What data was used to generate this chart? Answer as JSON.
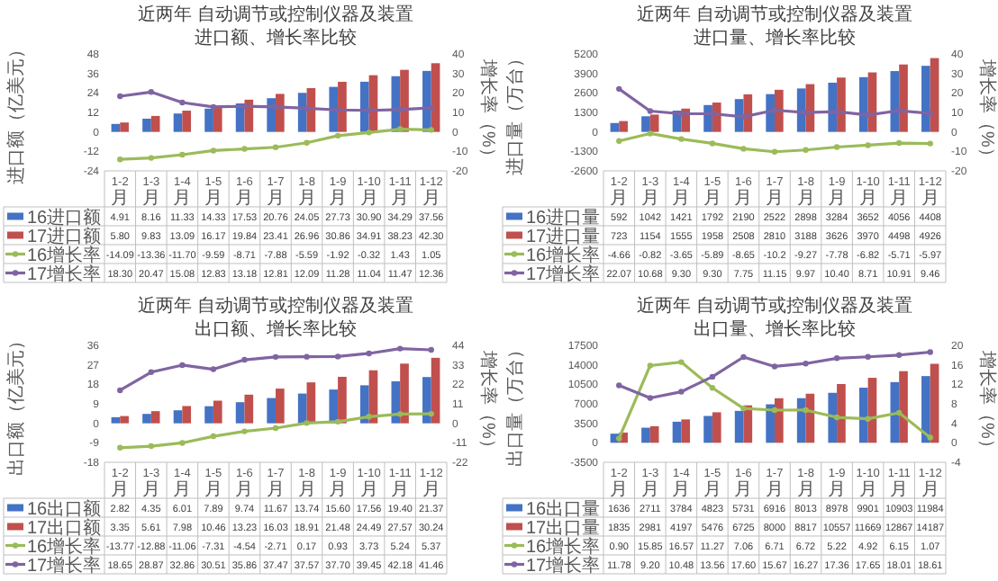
{
  "chart_data": [
    {
      "type": "bar",
      "title": "近两年 自动调节或控制仪器及装置",
      "subtitle": "进口额、增长率比较",
      "ylabel": "进口额（亿美元）",
      "y2label": "增长率（%）",
      "legend": "bottom",
      "marker": "circle",
      "categories": [
        "1-2月",
        "1-3月",
        "1-4月",
        "1-5月",
        "1-6月",
        "1-7月",
        "1-8月",
        "1-9月",
        "1-10月",
        "1-11月",
        "1-12月"
      ],
      "ylim": [
        -24,
        48
      ],
      "yticks": [
        -24,
        -12,
        0,
        12,
        24,
        36,
        48
      ],
      "y2lim": [
        -20,
        40
      ],
      "y2ticks": [
        -20,
        -10,
        0,
        10,
        20,
        30,
        40
      ],
      "series": [
        {
          "name": "16进口额",
          "type": "bar",
          "color": "#4472c4",
          "values": [
            4.91,
            8.16,
            11.33,
            14.33,
            17.53,
            20.76,
            24.05,
            27.73,
            30.9,
            34.29,
            37.56
          ],
          "value_labels": [
            "4.91",
            "8.16",
            "11.33",
            "14.33",
            "17.53",
            "20.76",
            "24.05",
            "27.73",
            "30.90",
            "34.29",
            "37.56"
          ]
        },
        {
          "name": "17进口额",
          "type": "bar",
          "color": "#c0504d",
          "values": [
            5.8,
            9.83,
            13.09,
            16.17,
            19.84,
            23.41,
            26.96,
            30.86,
            34.91,
            38.23,
            42.3
          ],
          "value_labels": [
            "5.80",
            "9.83",
            "13.09",
            "16.17",
            "19.84",
            "23.41",
            "26.96",
            "30.86",
            "34.91",
            "38.23",
            "42.30"
          ]
        },
        {
          "name": "16增长率",
          "type": "line",
          "axis": "y2",
          "color": "#9bbb59",
          "values": [
            -14.09,
            -13.36,
            -11.7,
            -9.59,
            -8.71,
            -7.88,
            -5.59,
            -1.92,
            -0.32,
            1.43,
            1.05
          ],
          "value_labels": [
            "-14.09",
            "-13.36",
            "-11.70",
            "-9.59",
            "-8.71",
            "-7.88",
            "-5.59",
            "-1.92",
            "-0.32",
            "1.43",
            "1.05"
          ]
        },
        {
          "name": "17增长率",
          "type": "line",
          "axis": "y2",
          "color": "#8064a2",
          "values": [
            18.3,
            20.47,
            15.08,
            12.83,
            13.18,
            12.81,
            12.09,
            11.28,
            11.04,
            11.47,
            12.36
          ],
          "value_labels": [
            "18.30",
            "20.47",
            "15.08",
            "12.83",
            "13.18",
            "12.81",
            "12.09",
            "11.28",
            "11.04",
            "11.47",
            "12.36"
          ]
        }
      ]
    },
    {
      "type": "bar",
      "title": "近两年 自动调节或控制仪器及装置",
      "subtitle": "进口量、增长率比较",
      "ylabel": "进口量（万台）",
      "y2label": "增长率（%）",
      "legend": "bottom",
      "marker": "circle",
      "categories": [
        "1-2月",
        "1-3月",
        "1-4月",
        "1-5月",
        "1-6月",
        "1-7月",
        "1-8月",
        "1-9月",
        "1-10月",
        "1-11月",
        "1-12月"
      ],
      "ylim": [
        -2600,
        5200
      ],
      "yticks": [
        -2600,
        -1300,
        0,
        1300,
        2600,
        3900,
        5200
      ],
      "y2lim": [
        -20,
        40
      ],
      "y2ticks": [
        -20,
        -10,
        0,
        10,
        20,
        30,
        40
      ],
      "series": [
        {
          "name": "16进口量",
          "type": "bar",
          "color": "#4472c4",
          "values": [
            592,
            1042,
            1421,
            1792,
            2190,
            2522,
            2898,
            3284,
            3652,
            4056,
            4408
          ],
          "value_labels": [
            "592",
            "1042",
            "1421",
            "1792",
            "2190",
            "2522",
            "2898",
            "3284",
            "3652",
            "4056",
            "4408"
          ]
        },
        {
          "name": "17进口量",
          "type": "bar",
          "color": "#c0504d",
          "values": [
            723,
            1154,
            1555,
            1958,
            2508,
            2810,
            3188,
            3626,
            3970,
            4498,
            4926
          ],
          "value_labels": [
            "723",
            "1154",
            "1555",
            "1958",
            "2508",
            "2810",
            "3188",
            "3626",
            "3970",
            "4498",
            "4926"
          ]
        },
        {
          "name": "16增长率",
          "type": "line",
          "axis": "y2",
          "color": "#9bbb59",
          "values": [
            -4.66,
            -0.82,
            -3.65,
            -5.89,
            -8.65,
            -10.2,
            -9.27,
            -7.78,
            -6.82,
            -5.71,
            -5.97
          ],
          "value_labels": [
            "-4.66",
            "-0.82",
            "-3.65",
            "-5.89",
            "-8.65",
            "-10.2",
            "-9.27",
            "-7.78",
            "-6.82",
            "-5.71",
            "-5.97"
          ]
        },
        {
          "name": "17增长率",
          "type": "line",
          "axis": "y2",
          "color": "#8064a2",
          "values": [
            22.07,
            10.68,
            9.3,
            9.3,
            7.75,
            11.15,
            9.97,
            10.4,
            8.71,
            10.91,
            9.46
          ],
          "value_labels": [
            "22.07",
            "10.68",
            "9.30",
            "9.30",
            "7.75",
            "11.15",
            "9.97",
            "10.40",
            "8.71",
            "10.91",
            "9.46"
          ]
        }
      ]
    },
    {
      "type": "bar",
      "title": "近两年 自动调节或控制仪器及装置",
      "subtitle": "出口额、增长率比较",
      "ylabel": "出口额（亿美元）",
      "y2label": "增长率（%）",
      "legend": "bottom",
      "marker": "circle",
      "categories": [
        "1-2月",
        "1-3月",
        "1-4月",
        "1-5月",
        "1-6月",
        "1-7月",
        "1-8月",
        "1-9月",
        "1-10月",
        "1-11月",
        "1-12月"
      ],
      "ylim": [
        -18,
        36
      ],
      "yticks": [
        -18,
        -9,
        0,
        9,
        18,
        27,
        36
      ],
      "y2lim": [
        -22,
        44
      ],
      "y2ticks": [
        -22,
        -11,
        0,
        11,
        22,
        33,
        44
      ],
      "series": [
        {
          "name": "16出口额",
          "type": "bar",
          "color": "#4472c4",
          "values": [
            2.82,
            4.35,
            6.01,
            7.89,
            9.74,
            11.67,
            13.74,
            15.6,
            17.56,
            19.4,
            21.37
          ],
          "value_labels": [
            "2.82",
            "4.35",
            "6.01",
            "7.89",
            "9.74",
            "11.67",
            "13.74",
            "15.60",
            "17.56",
            "19.40",
            "21.37"
          ]
        },
        {
          "name": "17出口额",
          "type": "bar",
          "color": "#c0504d",
          "values": [
            3.35,
            5.61,
            7.98,
            10.46,
            13.23,
            16.03,
            18.91,
            21.48,
            24.49,
            27.57,
            30.24
          ],
          "value_labels": [
            "3.35",
            "5.61",
            "7.98",
            "10.46",
            "13.23",
            "16.03",
            "18.91",
            "21.48",
            "24.49",
            "27.57",
            "30.24"
          ]
        },
        {
          "name": "16增长率",
          "type": "line",
          "axis": "y2",
          "color": "#9bbb59",
          "values": [
            -13.77,
            -12.88,
            -11.06,
            -7.31,
            -4.54,
            -2.71,
            0.17,
            0.93,
            3.73,
            5.24,
            5.37
          ],
          "value_labels": [
            "-13.77",
            "-12.88",
            "-11.06",
            "-7.31",
            "-4.54",
            "-2.71",
            "0.17",
            "0.93",
            "3.73",
            "5.24",
            "5.37"
          ]
        },
        {
          "name": "17增长率",
          "type": "line",
          "axis": "y2",
          "color": "#8064a2",
          "values": [
            18.65,
            28.87,
            32.86,
            30.51,
            35.86,
            37.47,
            37.57,
            37.7,
            39.45,
            42.18,
            41.46
          ],
          "value_labels": [
            "18.65",
            "28.87",
            "32.86",
            "30.51",
            "35.86",
            "37.47",
            "37.57",
            "37.70",
            "39.45",
            "42.18",
            "41.46"
          ]
        }
      ]
    },
    {
      "type": "bar",
      "title": "近两年 自动调节或控制仪器及装置",
      "subtitle": "出口量、增长率比较",
      "ylabel": "出口量（万台）",
      "y2label": "增长率（%）",
      "legend": "bottom",
      "marker": "circle",
      "categories": [
        "1-2月",
        "1-3月",
        "1-4月",
        "1-5月",
        "1-6月",
        "1-7月",
        "1-8月",
        "1-9月",
        "1-10月",
        "1-11月",
        "1-12月"
      ],
      "ylim": [
        -3500,
        17500
      ],
      "yticks": [
        -3500,
        0,
        3500,
        7000,
        10500,
        14000,
        17500
      ],
      "y2lim": [
        -4,
        20
      ],
      "y2ticks": [
        -4,
        0,
        4,
        8,
        12,
        16,
        20
      ],
      "series": [
        {
          "name": "16出口量",
          "type": "bar",
          "color": "#4472c4",
          "values": [
            1636,
            2711,
            3784,
            4823,
            5731,
            6916,
            8013,
            8978,
            9901,
            10903,
            11984
          ],
          "value_labels": [
            "1636",
            "2711",
            "3784",
            "4823",
            "5731",
            "6916",
            "8013",
            "8978",
            "9901",
            "10903",
            "11984"
          ]
        },
        {
          "name": "17出口量",
          "type": "bar",
          "color": "#c0504d",
          "values": [
            1835,
            2981,
            4197,
            5476,
            6725,
            8000,
            8817,
            10557,
            11669,
            12867,
            14187
          ],
          "value_labels": [
            "1835",
            "2981",
            "4197",
            "5476",
            "6725",
            "8000",
            "8817",
            "10557",
            "11669",
            "12867",
            "14187"
          ]
        },
        {
          "name": "16增长率",
          "type": "line",
          "axis": "y2",
          "color": "#9bbb59",
          "values": [
            0.9,
            15.85,
            16.57,
            11.27,
            7.06,
            6.71,
            6.72,
            5.22,
            4.92,
            6.15,
            1.07
          ],
          "value_labels": [
            "0.90",
            "15.85",
            "16.57",
            "11.27",
            "7.06",
            "6.71",
            "6.72",
            "5.22",
            "4.92",
            "6.15",
            "1.07"
          ]
        },
        {
          "name": "17增长率",
          "type": "line",
          "axis": "y2",
          "color": "#8064a2",
          "values": [
            11.78,
            9.2,
            10.48,
            13.56,
            17.6,
            15.67,
            16.27,
            17.36,
            17.65,
            18.01,
            18.61
          ],
          "value_labels": [
            "11.78",
            "9.20",
            "10.48",
            "13.56",
            "17.60",
            "15.67",
            "16.27",
            "17.36",
            "17.65",
            "18.01",
            "18.61"
          ]
        }
      ]
    }
  ]
}
